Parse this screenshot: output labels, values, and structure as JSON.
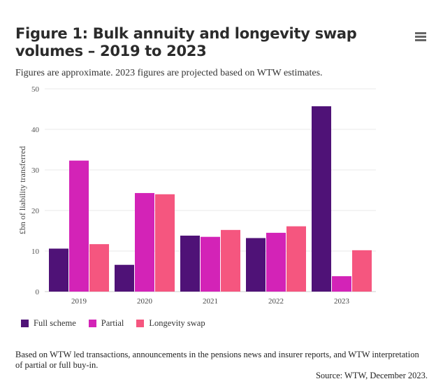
{
  "title": "Figure 1: Bulk annuity and longevity swap volumes – 2019 to 2023",
  "subtitle": "Figures are approximate. 2023 figures are projected based on WTW estimates.",
  "menu_icon": "hamburger-menu-icon",
  "chart_data": {
    "type": "bar",
    "title": "Figure 1: Bulk annuity and longevity swap volumes – 2019 to 2023",
    "xlabel": "",
    "ylabel": "£bn of liability transferred",
    "ylim": [
      0,
      50
    ],
    "yticks": [
      "0",
      "10",
      "20",
      "30",
      "40",
      "50"
    ],
    "grid": true,
    "legend_position": "bottom-left",
    "categories": [
      "2019",
      "2020",
      "2021",
      "2022",
      "2023"
    ],
    "series": [
      {
        "name": "Full scheme",
        "color": "#4F1277",
        "values": [
          10.6,
          6.6,
          13.8,
          13.2,
          45.7
        ]
      },
      {
        "name": "Partial",
        "color": "#D323B7",
        "values": [
          32.3,
          24.3,
          13.5,
          14.5,
          3.8
        ]
      },
      {
        "name": "Longevity swap",
        "color": "#F5567F",
        "values": [
          11.7,
          24.0,
          15.2,
          16.1,
          10.2
        ]
      }
    ]
  },
  "footnote": "Based on WTW led transactions, announcements in the pensions news and insurer reports, and WTW interpretation of partial or full buy-in.",
  "source": "Source: WTW, December 2023."
}
